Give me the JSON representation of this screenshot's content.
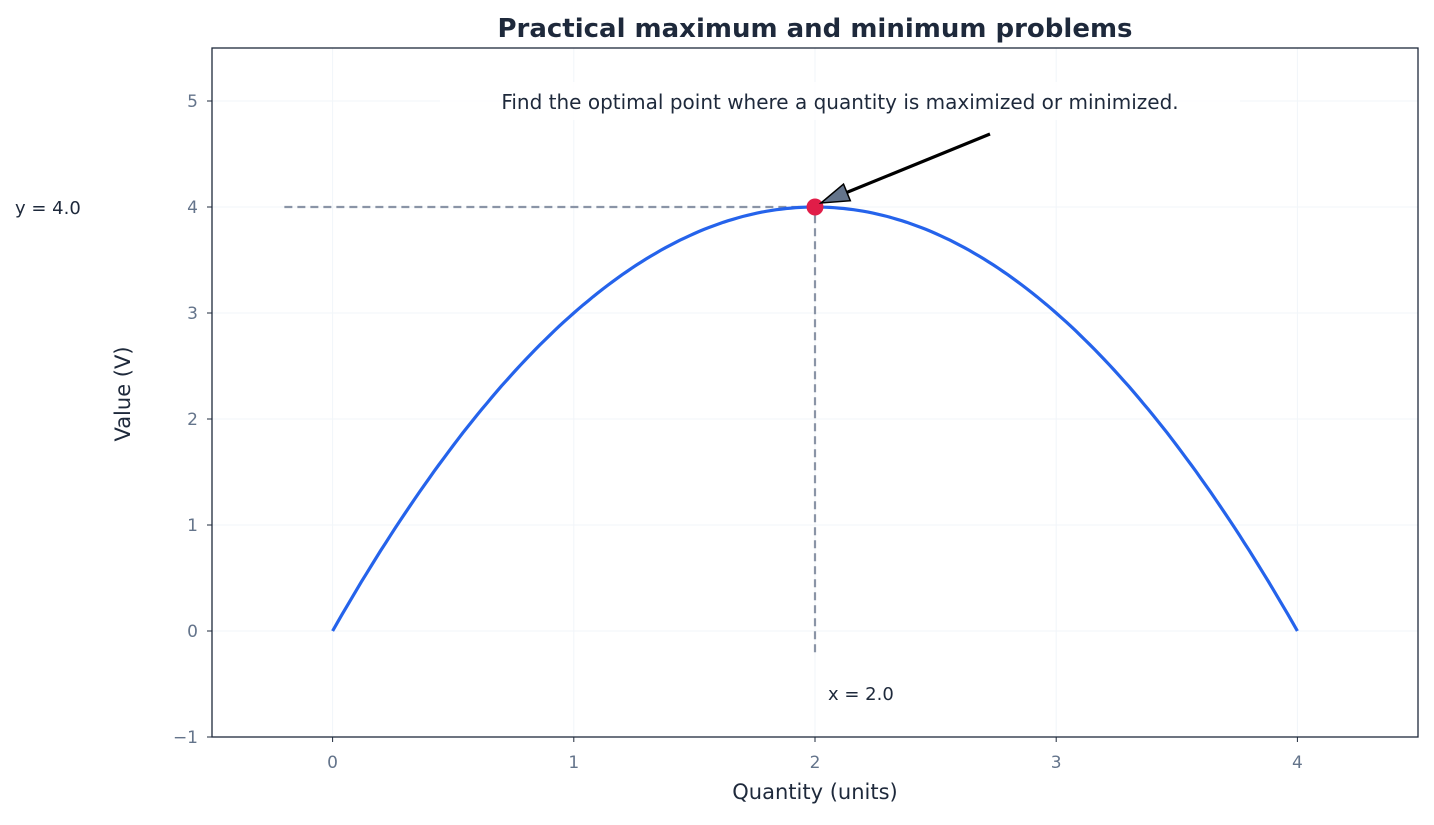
{
  "chart_data": {
    "type": "line",
    "title": "Practical maximum and minimum problems",
    "xlabel": "Quantity (units)",
    "ylabel": "Value (V)",
    "xlim": [
      -0.5,
      4.5
    ],
    "ylim": [
      -1,
      5.5
    ],
    "xticks": [
      "0",
      "1",
      "2",
      "3",
      "4"
    ],
    "yticks": [
      "−1",
      "0",
      "1",
      "2",
      "3",
      "4",
      "5"
    ],
    "grid": true,
    "series": [
      {
        "function": "y = 4x - x^2",
        "x_range": [
          0,
          4
        ],
        "color": "#2563eb"
      }
    ],
    "optimum": {
      "x": 2.0,
      "y": 4.0,
      "color": "#e11d48"
    },
    "annotation": "Find the optimal point where a quantity is maximized or minimized.",
    "x_marker_label": "x = 2.0",
    "y_marker_label": "y = 4.0"
  }
}
